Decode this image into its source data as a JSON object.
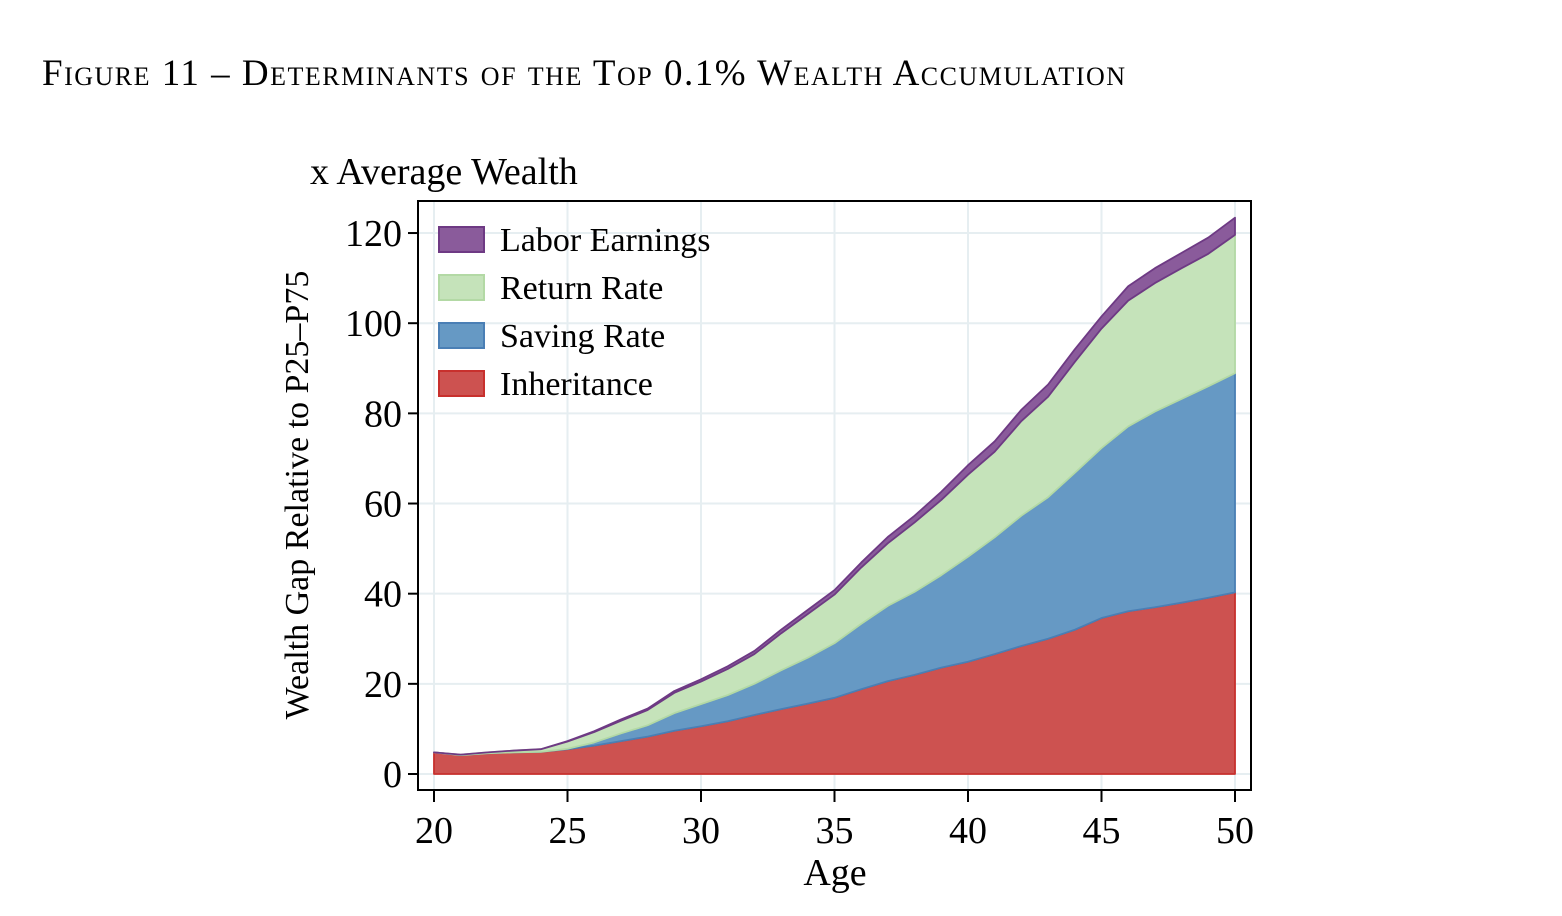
{
  "figure": {
    "title": "Figure 11 – Determinants of the Top 0.1% Wealth Accumulation"
  },
  "chart_data": {
    "type": "area",
    "stacked": true,
    "title": "Figure 11 – Determinants of the Top 0.1% Wealth Accumulation",
    "subtitle": "x Average Wealth",
    "xlabel": "Age",
    "ylabel": "Wealth Gap Relative to P25–P75",
    "xlim": [
      20,
      50
    ],
    "ylim": [
      -3,
      127
    ],
    "xticks": [
      20,
      25,
      30,
      35,
      40,
      45,
      50
    ],
    "yticks": [
      0,
      20,
      40,
      60,
      80,
      100,
      120
    ],
    "grid": true,
    "legend_position": "upper-left-inside",
    "legend": [
      "Labor Earnings",
      "Return Rate",
      "Saving Rate",
      "Inheritance"
    ],
    "x": [
      20,
      21,
      22,
      23,
      24,
      25,
      26,
      27,
      28,
      29,
      30,
      31,
      32,
      33,
      34,
      35,
      36,
      37,
      38,
      39,
      40,
      41,
      42,
      43,
      44,
      45,
      46,
      47,
      48,
      49,
      50
    ],
    "series": [
      {
        "name": "Inheritance",
        "color": "#CD5250",
        "edge": "#C8302D",
        "values": [
          4.8,
          4.2,
          4.6,
          4.8,
          4.9,
          5.5,
          6.3,
          7.3,
          8.3,
          9.6,
          10.6,
          11.7,
          13.1,
          14.4,
          15.6,
          16.9,
          18.8,
          20.6,
          22.0,
          23.6,
          24.9,
          26.6,
          28.4,
          30.0,
          32.0,
          34.6,
          36.1,
          37.0,
          38.0,
          39.1,
          40.3
        ]
      },
      {
        "name": "Saving Rate",
        "color": "#6699C4",
        "edge": "#4A7FB5",
        "values": [
          0.0,
          0.0,
          0.0,
          0.0,
          0.0,
          0.1,
          0.7,
          1.7,
          2.5,
          3.9,
          4.9,
          5.8,
          6.9,
          8.6,
          10.2,
          12.1,
          14.5,
          16.7,
          18.4,
          20.5,
          23.3,
          25.9,
          28.9,
          31.4,
          34.8,
          37.7,
          41.0,
          43.4,
          45.2,
          46.9,
          48.6
        ]
      },
      {
        "name": "Return Rate",
        "color": "#C5E3BA",
        "edge": "#B3D9A5",
        "values": [
          0.0,
          0.1,
          0.2,
          0.4,
          0.6,
          1.6,
          2.3,
          2.8,
          3.4,
          4.5,
          5.0,
          5.8,
          6.6,
          8.2,
          9.7,
          10.8,
          12.5,
          13.9,
          15.4,
          16.7,
          18.2,
          19.0,
          21.0,
          22.3,
          24.6,
          26.5,
          27.9,
          28.5,
          29.0,
          29.4,
          30.7
        ]
      },
      {
        "name": "Labor Earnings",
        "color": "#8A5B9B",
        "edge": "#6E3A84",
        "values": [
          0.0,
          0.0,
          0.0,
          0.0,
          0.0,
          0.1,
          0.2,
          0.3,
          0.3,
          0.4,
          0.5,
          0.6,
          0.7,
          0.8,
          0.9,
          1.0,
          1.1,
          1.4,
          1.5,
          1.8,
          2.1,
          2.3,
          2.5,
          2.7,
          2.8,
          2.7,
          3.2,
          3.3,
          3.4,
          3.6,
          3.8
        ]
      }
    ]
  }
}
